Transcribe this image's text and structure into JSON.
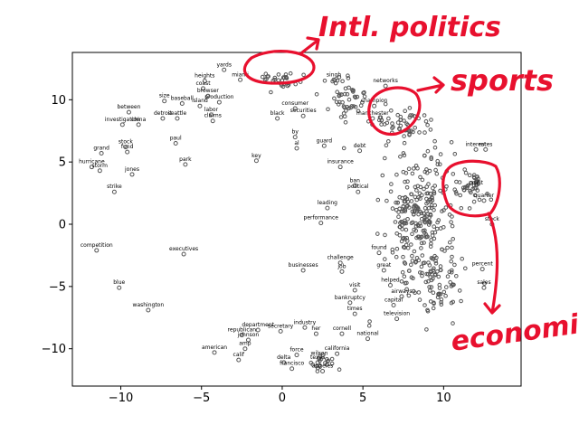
{
  "chart_data": {
    "type": "scatter",
    "title": "",
    "xlabel": "",
    "ylabel": "",
    "xlim": [
      -13,
      14.8
    ],
    "ylim": [
      -13,
      13.8
    ],
    "xticks": [
      -10,
      -5,
      0,
      5,
      10
    ],
    "yticks": [
      -10,
      -5,
      0,
      5,
      10
    ],
    "grid": false,
    "marker_color": "#555555",
    "annotation_color": "#e8102e",
    "points": [
      {
        "x": -4.8,
        "y": 11.5,
        "label": "heights"
      },
      {
        "x": -3.6,
        "y": 12.4,
        "label": "yards"
      },
      {
        "x": -2.6,
        "y": 11.6,
        "label": "miami"
      },
      {
        "x": -4.9,
        "y": 10.9,
        "label": "coast"
      },
      {
        "x": -4.6,
        "y": 10.3,
        "label": "browser"
      },
      {
        "x": -3.9,
        "y": 9.8,
        "label": "production"
      },
      {
        "x": -5.1,
        "y": 9.5,
        "label": "island"
      },
      {
        "x": -7.3,
        "y": 9.9,
        "label": "size"
      },
      {
        "x": -6.2,
        "y": 9.7,
        "label": "baseball"
      },
      {
        "x": -9.5,
        "y": 9.0,
        "label": "between"
      },
      {
        "x": -7.4,
        "y": 8.5,
        "label": "detroit"
      },
      {
        "x": -6.5,
        "y": 8.5,
        "label": "seattle"
      },
      {
        "x": -4.4,
        "y": 8.8,
        "label": "labor"
      },
      {
        "x": -4.3,
        "y": 8.3,
        "label": "claims"
      },
      {
        "x": -9.9,
        "y": 8.0,
        "label": "investigation"
      },
      {
        "x": -8.9,
        "y": 8.0,
        "label": "china"
      },
      {
        "x": -6.6,
        "y": 6.5,
        "label": "paul"
      },
      {
        "x": -6.0,
        "y": 4.8,
        "label": "park"
      },
      {
        "x": -11.2,
        "y": 5.7,
        "label": "grand"
      },
      {
        "x": -9.7,
        "y": 6.2,
        "label": "stock"
      },
      {
        "x": -9.6,
        "y": 5.8,
        "label": "fund"
      },
      {
        "x": -11.8,
        "y": 4.6,
        "label": "hurricane"
      },
      {
        "x": -11.3,
        "y": 4.3,
        "label": "storm"
      },
      {
        "x": -9.3,
        "y": 4.0,
        "label": "jones"
      },
      {
        "x": -10.4,
        "y": 2.6,
        "label": "strike"
      },
      {
        "x": -11.5,
        "y": -2.1,
        "label": "competition"
      },
      {
        "x": -6.1,
        "y": -2.4,
        "label": "executives"
      },
      {
        "x": -10.1,
        "y": -5.1,
        "label": "blue"
      },
      {
        "x": -8.3,
        "y": -6.9,
        "label": "washington"
      },
      {
        "x": -1.6,
        "y": 5.1,
        "label": "key"
      },
      {
        "x": -0.3,
        "y": 8.5,
        "label": "black"
      },
      {
        "x": 0.8,
        "y": 7.0,
        "label": "by"
      },
      {
        "x": 0.9,
        "y": 6.1,
        "label": "al"
      },
      {
        "x": 0.8,
        "y": 9.3,
        "label": "consumer"
      },
      {
        "x": 1.3,
        "y": 8.7,
        "label": "securities"
      },
      {
        "x": 2.6,
        "y": 6.3,
        "label": "guard"
      },
      {
        "x": 3.6,
        "y": 4.6,
        "label": "insurance"
      },
      {
        "x": 2.8,
        "y": 1.3,
        "label": "leading"
      },
      {
        "x": 2.4,
        "y": 0.1,
        "label": "performance"
      },
      {
        "x": 1.3,
        "y": -3.7,
        "label": "businesses"
      },
      {
        "x": 3.6,
        "y": -3.1,
        "label": "challenge"
      },
      {
        "x": 3.7,
        "y": -3.8,
        "label": "job"
      },
      {
        "x": 4.5,
        "y": -5.3,
        "label": "visit"
      },
      {
        "x": 4.2,
        "y": -6.3,
        "label": "bankruptcy"
      },
      {
        "x": 4.5,
        "y": -7.2,
        "label": "times"
      },
      {
        "x": 1.4,
        "y": -8.3,
        "label": "industry"
      },
      {
        "x": -0.1,
        "y": -8.6,
        "label": "secretary"
      },
      {
        "x": -1.5,
        "y": -8.5,
        "label": "department"
      },
      {
        "x": -2.5,
        "y": -8.9,
        "label": "republican"
      },
      {
        "x": -2.1,
        "y": -9.3,
        "label": "johnson"
      },
      {
        "x": 2.1,
        "y": -8.8,
        "label": "her"
      },
      {
        "x": 3.7,
        "y": -8.8,
        "label": "cornell"
      },
      {
        "x": -2.3,
        "y": -10.0,
        "label": "amp"
      },
      {
        "x": -4.2,
        "y": -10.3,
        "label": "american"
      },
      {
        "x": -2.7,
        "y": -10.9,
        "label": "calif"
      },
      {
        "x": 0.9,
        "y": -10.5,
        "label": "force"
      },
      {
        "x": 3.4,
        "y": -10.4,
        "label": "california"
      },
      {
        "x": 2.3,
        "y": -10.8,
        "label": "wilson"
      },
      {
        "x": 0.1,
        "y": -11.1,
        "label": "delta"
      },
      {
        "x": 2.2,
        "y": -11.1,
        "label": "texas"
      },
      {
        "x": 0.6,
        "y": -11.6,
        "label": "francisco"
      },
      {
        "x": 2.5,
        "y": -11.8,
        "label": "angeles"
      },
      {
        "x": 5.3,
        "y": -9.2,
        "label": "national"
      },
      {
        "x": 6.4,
        "y": 11.1,
        "label": "networks"
      },
      {
        "x": 3.2,
        "y": 11.6,
        "label": "singh"
      },
      {
        "x": 5.7,
        "y": 9.5,
        "label": "champion"
      },
      {
        "x": 5.6,
        "y": 8.5,
        "label": "manchester"
      },
      {
        "x": 4.8,
        "y": 5.9,
        "label": "debt"
      },
      {
        "x": 4.5,
        "y": 3.1,
        "label": "ban"
      },
      {
        "x": 4.7,
        "y": 2.6,
        "label": "political"
      },
      {
        "x": 6.0,
        "y": -2.3,
        "label": "found"
      },
      {
        "x": 6.3,
        "y": -3.7,
        "label": "great"
      },
      {
        "x": 6.7,
        "y": -4.9,
        "label": "helped"
      },
      {
        "x": 6.9,
        "y": -6.5,
        "label": "capital"
      },
      {
        "x": 7.1,
        "y": -7.6,
        "label": "television"
      },
      {
        "x": 7.4,
        "y": -5.8,
        "label": "airways"
      },
      {
        "x": 12.0,
        "y": 6.0,
        "label": "interest"
      },
      {
        "x": 12.6,
        "y": 6.0,
        "label": "rates"
      },
      {
        "x": 12.0,
        "y": 2.9,
        "label": "profit"
      },
      {
        "x": 12.5,
        "y": 1.9,
        "label": "quarter"
      },
      {
        "x": 13.0,
        "y": 0.0,
        "label": "stock"
      },
      {
        "x": 12.4,
        "y": -3.6,
        "label": "percent"
      },
      {
        "x": 12.5,
        "y": -5.1,
        "label": "sales"
      }
    ],
    "annotations": [
      {
        "text": "Intl. politics"
      },
      {
        "text": "sports"
      },
      {
        "text": "economic"
      }
    ]
  }
}
